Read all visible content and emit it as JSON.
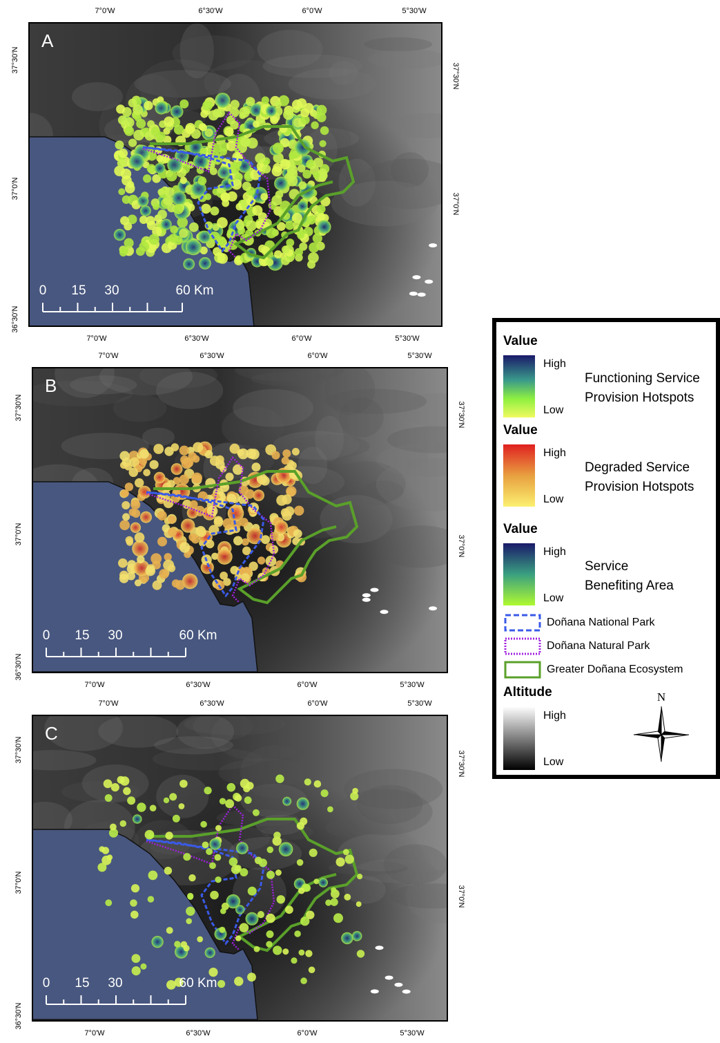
{
  "panels": [
    {
      "label": "A",
      "top_ticks": [
        "7°0'W",
        "6°30'W",
        "6°0'W",
        "5°30'W"
      ],
      "bottom_ticks": [
        "7°0'W",
        "6°30'W",
        "6°0'W",
        "5°30'W"
      ],
      "left_ticks": [
        "37°30'N",
        "37°0'N",
        "36°30'N"
      ],
      "right_ticks": [
        "37°30'N",
        "37°0'N"
      ],
      "scale_labels": [
        "0",
        "15",
        "30",
        "60 Km"
      ]
    },
    {
      "label": "B",
      "top_ticks": [
        "7°0'W",
        "6°30'W",
        "6°0'W",
        "5°30'W"
      ],
      "bottom_ticks": [
        "7°0'W",
        "6°30'W",
        "6°0'W",
        "5°30'W"
      ],
      "left_ticks": [
        "37°30'N",
        "37°0'N",
        "36°30'N"
      ],
      "right_ticks": [
        "37°30'N",
        "37°0'N"
      ],
      "scale_labels": [
        "0",
        "15",
        "30",
        "60 Km"
      ]
    },
    {
      "label": "C",
      "top_ticks": [
        "7°0'W",
        "6°30'W",
        "6°0'W",
        "5°30'W"
      ],
      "bottom_ticks": [
        "7°0'W",
        "6°30'W",
        "6°0'W",
        "5°30'W"
      ],
      "left_ticks": [
        "37°30'N",
        "37°0'N",
        "36°30'N"
      ],
      "right_ticks": [
        "37°30'N",
        "37°0'N"
      ],
      "scale_labels": [
        "0",
        "15",
        "30",
        "60 Km"
      ]
    }
  ],
  "legend": {
    "value_sections": [
      {
        "title": "Value",
        "high": "High",
        "low": "Low",
        "label": [
          "Functioning Service",
          "Provision Hotspots"
        ]
      },
      {
        "title": "Value",
        "high": "High",
        "low": "Low",
        "label": [
          "Degraded Service",
          "Provision Hotspots"
        ]
      },
      {
        "title": "Value",
        "high": "High",
        "low": "Low",
        "label": [
          "Service",
          "Benefiting Area"
        ]
      }
    ],
    "boundaries": [
      "Doñana National Park",
      "Doñana Natural Park",
      "Greater Doñana Ecosystem"
    ],
    "altitude": {
      "title": "Altitude",
      "high": "High",
      "low": "Low"
    },
    "north": "N"
  }
}
